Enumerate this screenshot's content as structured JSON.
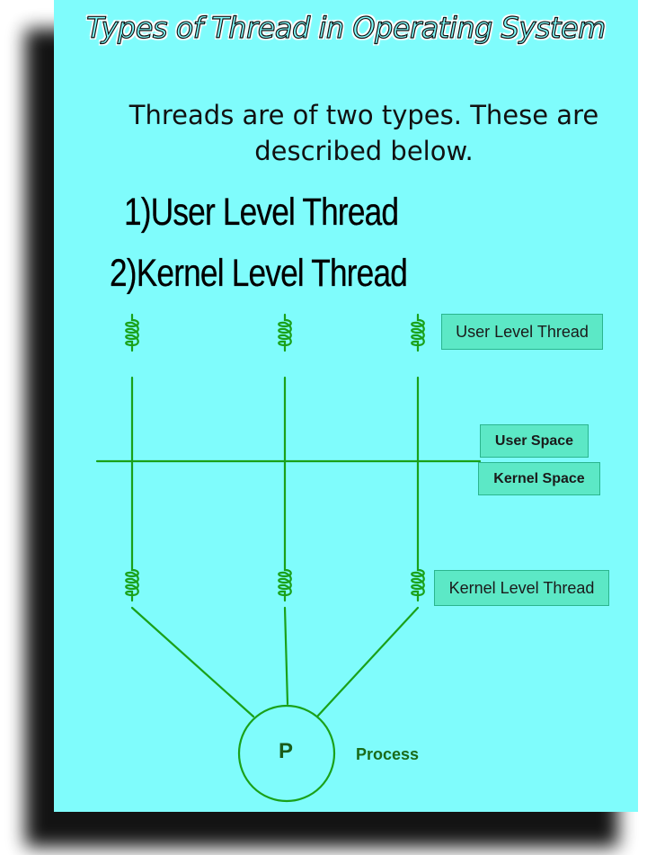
{
  "title": "Types of Thread in Operating System",
  "intro": "Threads are of two types. These are described below.",
  "types": [
    "1)User Level Thread",
    "2)Kernel Level Thread"
  ],
  "diagram": {
    "labels": {
      "user_level_thread": "User Level Thread",
      "user_space": "User Space",
      "kernel_space": "Kernel Space",
      "kernel_level_thread": "Kernel Level Thread",
      "process": "Process",
      "process_node": "P"
    },
    "colors": {
      "line": "#1aa11a",
      "label_box": "#5ce8c6",
      "background": "#7ffcfc"
    }
  }
}
